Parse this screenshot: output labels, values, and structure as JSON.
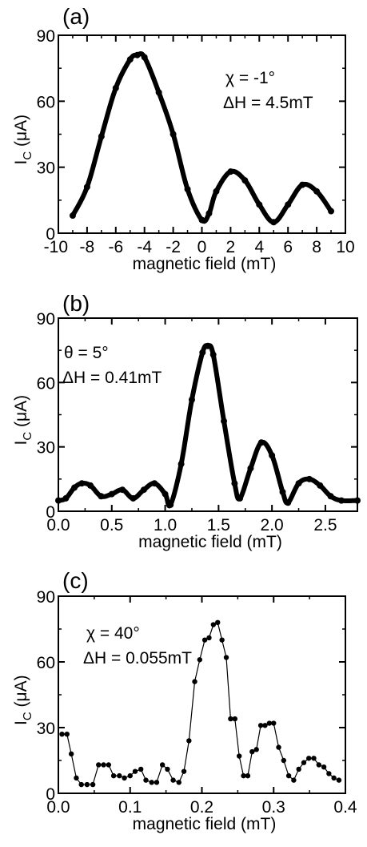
{
  "figure": {
    "background": "#ffffff",
    "ink_color": "#000000"
  },
  "chart_data": [
    {
      "panel_label": "(a)",
      "type": "scatter",
      "marker": "dense-dots",
      "xlabel": "magnetic field (mT)",
      "ylabel": "I",
      "ylabel_sub": "C",
      "ylabel_unit": " (μA)",
      "xlim": [
        -10,
        10
      ],
      "ylim": [
        0,
        90
      ],
      "xticks": [
        -10,
        -8,
        -6,
        -4,
        -2,
        0,
        2,
        4,
        6,
        8,
        10
      ],
      "xtick_labels": [
        "-10",
        "-8",
        "-6",
        "-4",
        "-2",
        "0",
        "2",
        "4",
        "6",
        "8",
        "10"
      ],
      "yticks": [
        0,
        30,
        60,
        90
      ],
      "ytick_labels": [
        "0",
        "30",
        "60",
        "90"
      ],
      "annotations": [
        "χ = -1°",
        "ΔH = 4.5mT"
      ],
      "x": [
        -9.0,
        -8.0,
        -7.0,
        -6.0,
        -5.0,
        -4.5,
        -4.0,
        -3.0,
        -2.0,
        -1.0,
        0.0,
        0.5,
        1.0,
        2.0,
        3.0,
        4.0,
        5.0,
        6.0,
        7.0,
        8.0,
        9.0
      ],
      "y": [
        8,
        21,
        44,
        66,
        79,
        81,
        80,
        64,
        45,
        20,
        6,
        9,
        19,
        28,
        24,
        13,
        5,
        13,
        22,
        19,
        10
      ]
    },
    {
      "panel_label": "(b)",
      "type": "scatter",
      "marker": "dense-dots",
      "xlabel": "magnetic field (mT)",
      "ylabel": "I",
      "ylabel_sub": "C",
      "ylabel_unit": " (μA)",
      "xlim": [
        0,
        2.8
      ],
      "ylim": [
        0,
        90
      ],
      "xticks": [
        0,
        0.5,
        1.0,
        1.5,
        2.0,
        2.5
      ],
      "xtick_labels": [
        "0.0",
        "0.5",
        "1.0",
        "1.5",
        "2.0",
        "2.5"
      ],
      "yticks": [
        0,
        30,
        60,
        90
      ],
      "ytick_labels": [
        "0",
        "30",
        "60",
        "90"
      ],
      "annotations": [
        "θ = 5°",
        "ΔH = 0.41mT"
      ],
      "x": [
        0.0,
        0.07,
        0.15,
        0.22,
        0.3,
        0.4,
        0.5,
        0.6,
        0.7,
        0.8,
        0.9,
        1.0,
        1.05,
        1.15,
        1.25,
        1.35,
        1.4,
        1.45,
        1.55,
        1.65,
        1.7,
        1.8,
        1.9,
        2.0,
        2.1,
        2.15,
        2.25,
        2.35,
        2.45,
        2.55,
        2.65,
        2.8
      ],
      "y": [
        5,
        6,
        11,
        13,
        12,
        7,
        8,
        10,
        6,
        10,
        13,
        8,
        3,
        22,
        52,
        74,
        77,
        73,
        42,
        13,
        6,
        20,
        32,
        26,
        9,
        4,
        13,
        15,
        12,
        7,
        5,
        5
      ]
    },
    {
      "panel_label": "(c)",
      "type": "line",
      "marker": "dots-connected",
      "xlabel": "magnetic field (mT)",
      "ylabel": "I",
      "ylabel_sub": "C",
      "ylabel_unit": " (μA)",
      "xlim": [
        0,
        0.4
      ],
      "ylim": [
        0,
        90
      ],
      "xticks": [
        0,
        0.1,
        0.2,
        0.3,
        0.4
      ],
      "xtick_labels": [
        "0.0",
        "0.1",
        "0.2",
        "0.3",
        "0.4"
      ],
      "yticks": [
        0,
        30,
        60,
        90
      ],
      "ytick_labels": [
        "0",
        "30",
        "60",
        "90"
      ],
      "annotations": [
        "χ = 40°",
        "ΔH = 0.055mT"
      ],
      "x": [
        0.005,
        0.012,
        0.018,
        0.025,
        0.032,
        0.04,
        0.048,
        0.056,
        0.063,
        0.07,
        0.077,
        0.085,
        0.092,
        0.1,
        0.107,
        0.115,
        0.122,
        0.13,
        0.137,
        0.145,
        0.152,
        0.16,
        0.168,
        0.175,
        0.182,
        0.19,
        0.197,
        0.204,
        0.21,
        0.216,
        0.222,
        0.228,
        0.234,
        0.24,
        0.246,
        0.252,
        0.258,
        0.264,
        0.27,
        0.276,
        0.282,
        0.288,
        0.294,
        0.3,
        0.307,
        0.314,
        0.321,
        0.328,
        0.335,
        0.342,
        0.349,
        0.356,
        0.363,
        0.37,
        0.377,
        0.384,
        0.391
      ],
      "y": [
        27,
        27,
        18,
        7,
        4,
        4,
        4,
        13,
        13,
        13,
        8,
        8,
        7,
        8,
        10,
        11,
        6,
        5,
        5,
        13,
        11,
        6,
        5,
        10,
        24,
        51,
        61,
        70,
        71,
        77,
        78,
        70,
        62,
        34,
        34,
        17,
        8,
        8,
        19,
        20,
        31,
        31,
        32,
        32,
        21,
        15,
        8,
        6,
        11,
        14,
        16,
        16,
        13,
        12,
        9,
        7,
        6
      ]
    }
  ]
}
